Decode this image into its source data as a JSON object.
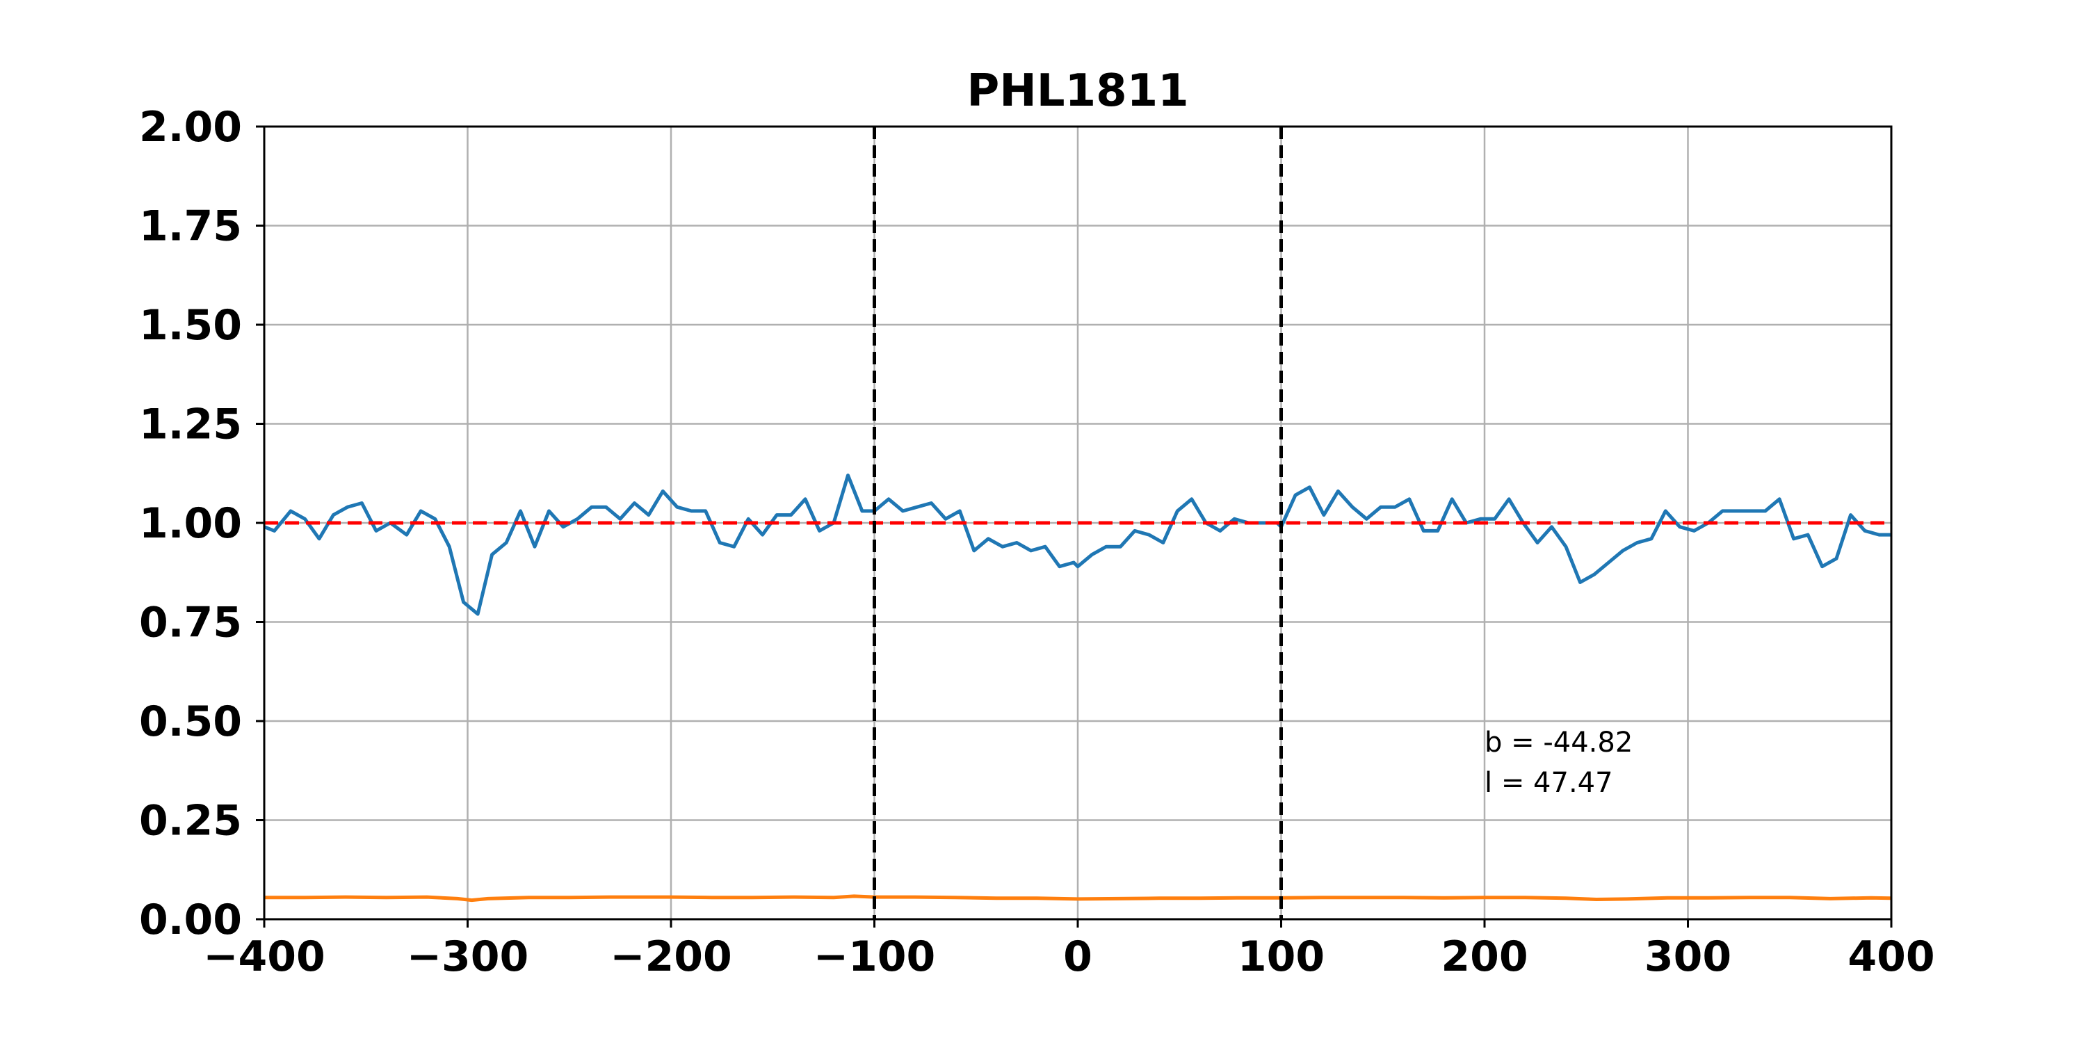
{
  "chart_data": {
    "type": "line",
    "title": "PHL1811",
    "xlabel": "",
    "ylabel": "",
    "xlim": [
      -400,
      400
    ],
    "ylim": [
      0,
      2
    ],
    "x_ticks": [
      -400,
      -300,
      -200,
      -100,
      0,
      100,
      200,
      300,
      400
    ],
    "x_tick_labels": [
      "−400",
      "−300",
      "−200",
      "−100",
      "0",
      "100",
      "200",
      "300",
      "400"
    ],
    "y_ticks": [
      0,
      0.25,
      0.5,
      0.75,
      1.0,
      1.25,
      1.5,
      1.75,
      2.0
    ],
    "y_tick_labels": [
      "0.00",
      "0.25",
      "0.50",
      "0.75",
      "1.00",
      "1.25",
      "1.50",
      "1.75",
      "2.00"
    ],
    "grid": true,
    "vertical_markers": [
      -100,
      100
    ],
    "reference_line": 1.0,
    "colors": {
      "flux": "#1f77b4",
      "error": "#ff7f0e",
      "reference": "#ff0000",
      "markers": "#000000",
      "grid": "#b0b0b0",
      "axes": "#000000"
    },
    "series": [
      {
        "key": "flux",
        "x": [
          -400,
          -395,
          -387,
          -380,
          -373,
          -366,
          -359,
          -352,
          -345,
          -338,
          -330,
          -323,
          -316,
          -309,
          -302,
          -295,
          -288,
          -281,
          -274,
          -267,
          -260,
          -253,
          -246,
          -239,
          -232,
          -225,
          -218,
          -211,
          -204,
          -197,
          -190,
          -183,
          -176,
          -169,
          -162,
          -155,
          -148,
          -141,
          -134,
          -127,
          -120,
          -113,
          -106,
          -100,
          -93,
          -86,
          -79,
          -72,
          -65,
          -58,
          -51,
          -44,
          -37,
          -30,
          -23,
          -16,
          -9,
          -2,
          0,
          7,
          14,
          21,
          28,
          35,
          42,
          49,
          56,
          63,
          70,
          77,
          84,
          91,
          98,
          100,
          107,
          114,
          121,
          128,
          135,
          142,
          149,
          156,
          163,
          170,
          177,
          184,
          191,
          198,
          205,
          212,
          219,
          226,
          233,
          240,
          247,
          254,
          261,
          268,
          275,
          282,
          289,
          296,
          303,
          310,
          317,
          324,
          331,
          338,
          345,
          352,
          359,
          366,
          373,
          380,
          387,
          394,
          400
        ],
        "y": [
          0.99,
          0.98,
          1.03,
          1.01,
          0.96,
          1.02,
          1.04,
          1.05,
          0.98,
          1.0,
          0.97,
          1.03,
          1.01,
          0.94,
          0.8,
          0.77,
          0.92,
          0.95,
          1.03,
          0.94,
          1.03,
          0.99,
          1.01,
          1.04,
          1.04,
          1.01,
          1.05,
          1.02,
          1.08,
          1.04,
          1.03,
          1.03,
          0.95,
          0.94,
          1.01,
          0.97,
          1.02,
          1.02,
          1.06,
          0.98,
          1.0,
          1.12,
          1.03,
          1.03,
          1.06,
          1.03,
          1.04,
          1.05,
          1.01,
          1.03,
          0.93,
          0.96,
          0.94,
          0.95,
          0.93,
          0.94,
          0.89,
          0.9,
          0.89,
          0.92,
          0.94,
          0.94,
          0.98,
          0.97,
          0.95,
          1.03,
          1.06,
          1.0,
          0.98,
          1.01,
          1.0,
          1.0,
          1.0,
          0.99,
          1.07,
          1.09,
          1.02,
          1.08,
          1.04,
          1.01,
          1.04,
          1.04,
          1.06,
          0.98,
          0.98,
          1.06,
          1.0,
          1.01,
          1.01,
          1.06,
          1.0,
          0.95,
          0.99,
          0.94,
          0.85,
          0.87,
          0.9,
          0.93,
          0.95,
          0.96,
          1.03,
          0.99,
          0.98,
          1.0,
          1.03,
          1.03,
          1.03,
          1.03,
          1.06,
          0.96,
          0.97,
          0.89,
          0.91,
          1.02,
          0.98,
          0.97,
          0.97
        ]
      },
      {
        "key": "error",
        "x": [
          -400,
          -380,
          -360,
          -340,
          -320,
          -305,
          -298,
          -290,
          -270,
          -250,
          -230,
          -200,
          -180,
          -160,
          -140,
          -120,
          -110,
          -100,
          -80,
          -60,
          -40,
          -20,
          0,
          20,
          40,
          60,
          80,
          100,
          120,
          140,
          160,
          180,
          200,
          220,
          240,
          255,
          270,
          290,
          310,
          330,
          350,
          370,
          390,
          400
        ],
        "y": [
          0.055,
          0.055,
          0.056,
          0.055,
          0.056,
          0.052,
          0.048,
          0.052,
          0.055,
          0.055,
          0.056,
          0.056,
          0.055,
          0.055,
          0.056,
          0.055,
          0.058,
          0.056,
          0.056,
          0.055,
          0.053,
          0.053,
          0.051,
          0.052,
          0.053,
          0.053,
          0.054,
          0.054,
          0.055,
          0.055,
          0.055,
          0.054,
          0.055,
          0.055,
          0.053,
          0.05,
          0.051,
          0.054,
          0.054,
          0.055,
          0.055,
          0.052,
          0.054,
          0.053
        ]
      }
    ],
    "annotations": [
      "b = -44.82",
      "l = 47.47"
    ],
    "annotation_anchor": {
      "x": 200,
      "y": 0.37
    }
  }
}
